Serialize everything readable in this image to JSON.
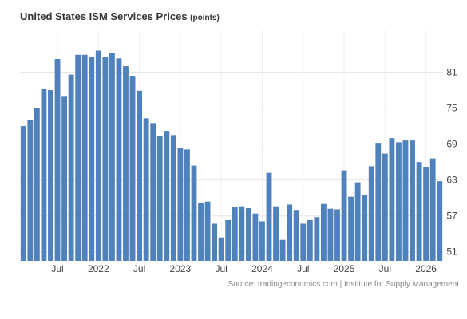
{
  "chart_data": {
    "type": "bar",
    "title": "United States ISM Services Prices",
    "units": "(points)",
    "source": "Source: tradingeconomics.com | Institute for Supply Management",
    "ylim": [
      49.5,
      88
    ],
    "ytick_values": [
      51,
      57,
      63,
      69,
      75,
      81
    ],
    "ytick_labels": [
      "51",
      "57",
      "63",
      "69",
      "75",
      "81"
    ],
    "xtick_labels": [
      {
        "index": 5,
        "label": "Jul"
      },
      {
        "index": 11,
        "label": "2022"
      },
      {
        "index": 17,
        "label": "Jul"
      },
      {
        "index": 23,
        "label": "2023"
      },
      {
        "index": 29,
        "label": "Jul"
      },
      {
        "index": 35,
        "label": "2024"
      },
      {
        "index": 41,
        "label": "Jul"
      },
      {
        "index": 47,
        "label": "2025"
      },
      {
        "index": 53,
        "label": "Jul"
      },
      {
        "index": 59,
        "label": "2026"
      }
    ],
    "values": [
      72,
      73,
      75,
      78.2,
      78,
      83.2,
      76.9,
      80.6,
      83.9,
      83.9,
      83.6,
      84.6,
      83.5,
      84.2,
      83.3,
      82,
      80.4,
      77.9,
      73.3,
      72.5,
      70.3,
      71.2,
      70.5,
      68.3,
      68.1,
      65.4,
      59.2,
      59.4,
      55.7,
      53.4,
      56.3,
      58.5,
      58.6,
      58.3,
      57.4,
      56.1,
      64.2,
      58.6,
      53,
      58.9,
      58,
      55.7,
      56.3,
      56.8,
      59,
      58.2,
      58.1,
      64.6,
      60.2,
      62.6,
      60.5,
      65.3,
      69.2,
      67.4,
      70,
      69.3,
      69.6,
      69.6,
      66,
      65.1,
      66.6,
      62.8
    ],
    "bar_color": "#4f81bd",
    "grid": "horizontal",
    "legend": "none"
  }
}
